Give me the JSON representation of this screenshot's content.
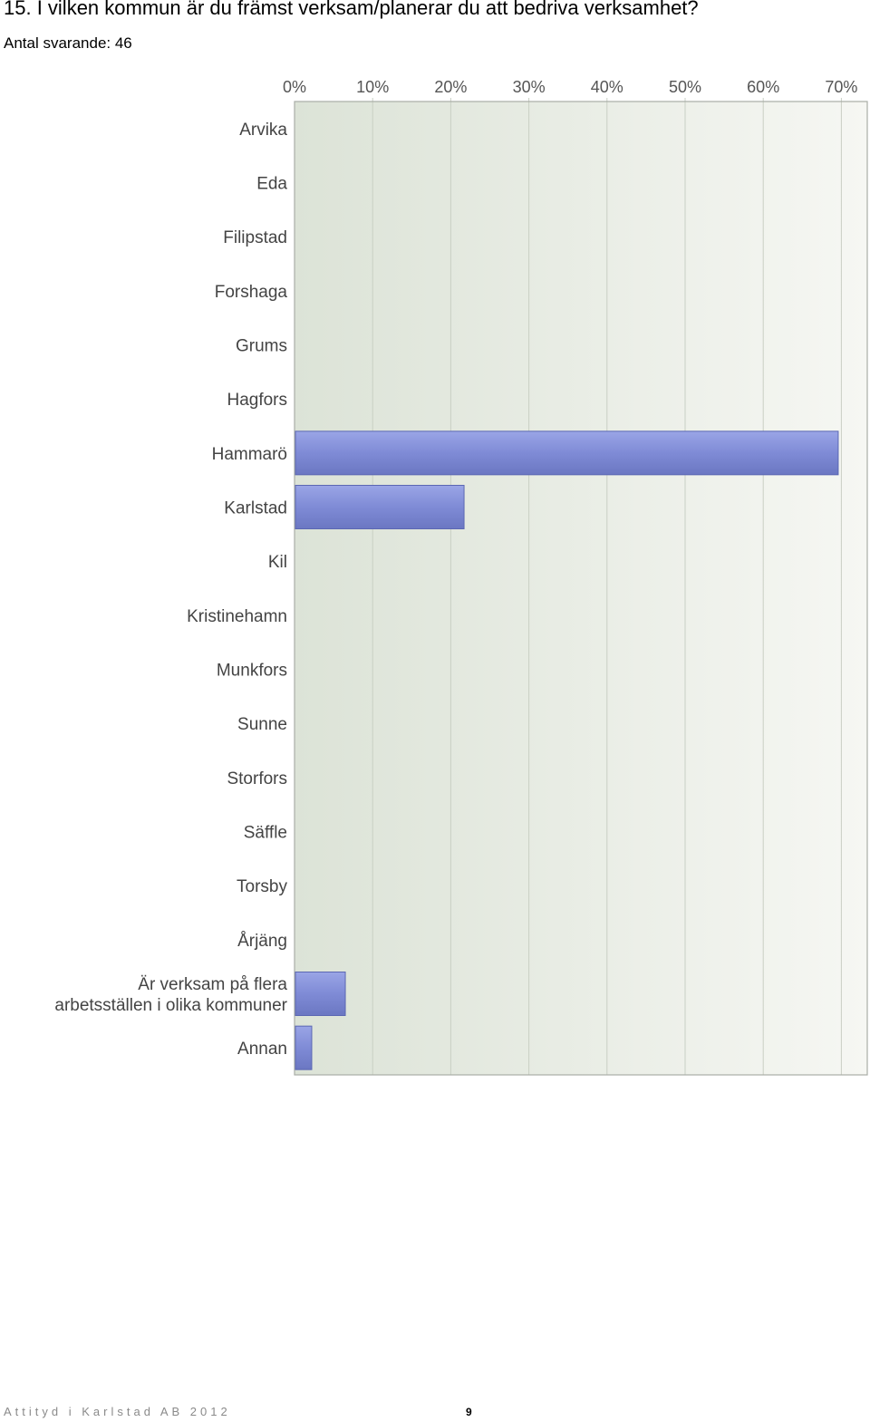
{
  "page": {
    "question": "15. I vilken kommun är du främst verksam/planerar du att bedriva verksamhet?",
    "respondents": "Antal svarande: 46",
    "footer_text": "Attityd i Karlstad AB 2012",
    "page_number": "9"
  },
  "chart_data": {
    "type": "bar",
    "orientation": "horizontal",
    "categories": [
      "Arvika",
      "Eda",
      "Filipstad",
      "Forshaga",
      "Grums",
      "Hagfors",
      "Hammarö",
      "Karlstad",
      "Kil",
      "Kristinehamn",
      "Munkfors",
      "Sunne",
      "Storfors",
      "Säffle",
      "Torsby",
      "Årjäng",
      "Är verksam på flera|arbetsställen i olika kommuner",
      "Annan"
    ],
    "values": [
      0,
      0,
      0,
      0,
      0,
      0,
      69.6,
      21.7,
      0,
      0,
      0,
      0,
      0,
      0,
      0,
      0,
      6.5,
      2.2
    ],
    "unit": "%",
    "xlim": [
      0,
      73
    ],
    "ticks": [
      "0%",
      "10%",
      "20%",
      "30%",
      "40%",
      "50%",
      "60%",
      "70%"
    ],
    "tick_values": [
      0,
      10,
      20,
      30,
      40,
      50,
      60,
      70
    ],
    "grid": true,
    "bar_color": "#7c88d4",
    "bar_edge_color": "#5b67b3"
  }
}
